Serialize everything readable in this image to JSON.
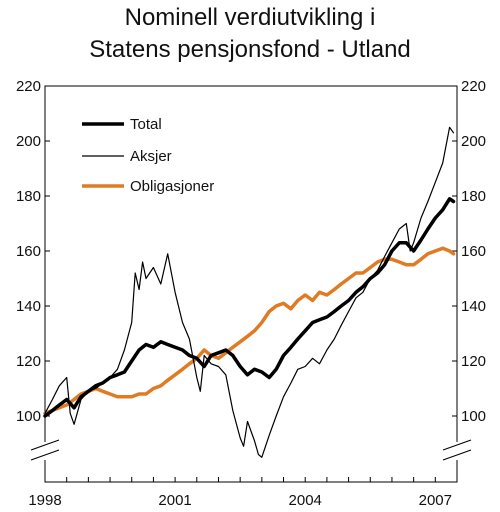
{
  "chart_data": {
    "type": "line",
    "title_line1": "Nominell verdiutvikling i",
    "title_line2": "Statens pensjonsfond - Utland",
    "xlabel": "",
    "ylabel": "",
    "xlim": [
      1998.0,
      2007.5
    ],
    "ylim": [
      82,
      220
    ],
    "y_ticks": [
      100,
      120,
      140,
      160,
      180,
      200,
      220
    ],
    "x_ticks": [
      1998,
      2001,
      2004,
      2007
    ],
    "x_minor_tick_interval": 0.5,
    "axis_break": true,
    "grid": false,
    "legend_position": "top-left inside",
    "series": [
      {
        "name": "Total",
        "color": "#000000",
        "width": 3.5,
        "points": [
          [
            1998.0,
            100
          ],
          [
            1998.17,
            102
          ],
          [
            1998.33,
            104
          ],
          [
            1998.5,
            106
          ],
          [
            1998.67,
            103
          ],
          [
            1998.83,
            107
          ],
          [
            1999.0,
            109
          ],
          [
            1999.17,
            111
          ],
          [
            1999.33,
            112
          ],
          [
            1999.5,
            114
          ],
          [
            1999.67,
            115
          ],
          [
            1999.83,
            116
          ],
          [
            2000.0,
            120
          ],
          [
            2000.17,
            124
          ],
          [
            2000.33,
            126
          ],
          [
            2000.5,
            125
          ],
          [
            2000.67,
            127
          ],
          [
            2000.83,
            126
          ],
          [
            2001.0,
            125
          ],
          [
            2001.17,
            124
          ],
          [
            2001.33,
            122
          ],
          [
            2001.5,
            121
          ],
          [
            2001.67,
            118
          ],
          [
            2001.83,
            122
          ],
          [
            2002.0,
            123
          ],
          [
            2002.17,
            124
          ],
          [
            2002.33,
            122
          ],
          [
            2002.5,
            118
          ],
          [
            2002.67,
            115
          ],
          [
            2002.83,
            117
          ],
          [
            2003.0,
            116
          ],
          [
            2003.17,
            114
          ],
          [
            2003.33,
            117
          ],
          [
            2003.5,
            122
          ],
          [
            2003.67,
            125
          ],
          [
            2003.83,
            128
          ],
          [
            2004.0,
            131
          ],
          [
            2004.17,
            134
          ],
          [
            2004.33,
            135
          ],
          [
            2004.5,
            136
          ],
          [
            2004.67,
            138
          ],
          [
            2004.83,
            140
          ],
          [
            2005.0,
            142
          ],
          [
            2005.17,
            145
          ],
          [
            2005.33,
            147
          ],
          [
            2005.5,
            150
          ],
          [
            2005.67,
            152
          ],
          [
            2005.83,
            155
          ],
          [
            2006.0,
            160
          ],
          [
            2006.17,
            163
          ],
          [
            2006.33,
            163
          ],
          [
            2006.5,
            160
          ],
          [
            2006.67,
            164
          ],
          [
            2006.83,
            168
          ],
          [
            2007.0,
            172
          ],
          [
            2007.17,
            175
          ],
          [
            2007.33,
            179
          ],
          [
            2007.42,
            178
          ]
        ]
      },
      {
        "name": "Aksjer",
        "color": "#000000",
        "width": 1.2,
        "points": [
          [
            1998.0,
            101
          ],
          [
            1998.17,
            106
          ],
          [
            1998.33,
            111
          ],
          [
            1998.5,
            114
          ],
          [
            1998.58,
            101
          ],
          [
            1998.67,
            97
          ],
          [
            1998.83,
            106
          ],
          [
            1999.0,
            109
          ],
          [
            1999.17,
            110
          ],
          [
            1999.33,
            112
          ],
          [
            1999.5,
            114
          ],
          [
            1999.67,
            117
          ],
          [
            1999.83,
            124
          ],
          [
            2000.0,
            134
          ],
          [
            2000.08,
            152
          ],
          [
            2000.17,
            146
          ],
          [
            2000.25,
            156
          ],
          [
            2000.33,
            150
          ],
          [
            2000.5,
            154
          ],
          [
            2000.67,
            148
          ],
          [
            2000.83,
            159
          ],
          [
            2001.0,
            145
          ],
          [
            2001.17,
            134
          ],
          [
            2001.33,
            128
          ],
          [
            2001.5,
            114
          ],
          [
            2001.58,
            109
          ],
          [
            2001.67,
            122
          ],
          [
            2001.83,
            119
          ],
          [
            2002.0,
            118
          ],
          [
            2002.17,
            115
          ],
          [
            2002.33,
            102
          ],
          [
            2002.5,
            92
          ],
          [
            2002.58,
            89
          ],
          [
            2002.67,
            98
          ],
          [
            2002.83,
            91
          ],
          [
            2002.92,
            86
          ],
          [
            2003.0,
            85
          ],
          [
            2003.17,
            93
          ],
          [
            2003.33,
            100
          ],
          [
            2003.5,
            107
          ],
          [
            2003.67,
            112
          ],
          [
            2003.83,
            117
          ],
          [
            2004.0,
            118
          ],
          [
            2004.17,
            121
          ],
          [
            2004.33,
            119
          ],
          [
            2004.5,
            124
          ],
          [
            2004.67,
            128
          ],
          [
            2004.83,
            133
          ],
          [
            2005.0,
            138
          ],
          [
            2005.17,
            143
          ],
          [
            2005.33,
            145
          ],
          [
            2005.5,
            150
          ],
          [
            2005.67,
            153
          ],
          [
            2005.83,
            158
          ],
          [
            2006.0,
            163
          ],
          [
            2006.17,
            168
          ],
          [
            2006.33,
            170
          ],
          [
            2006.42,
            160
          ],
          [
            2006.5,
            163
          ],
          [
            2006.67,
            172
          ],
          [
            2006.83,
            178
          ],
          [
            2007.0,
            185
          ],
          [
            2007.17,
            192
          ],
          [
            2007.33,
            205
          ],
          [
            2007.42,
            203
          ]
        ]
      },
      {
        "name": "Obligasjoner",
        "color": "#e07b23",
        "width": 3.5,
        "points": [
          [
            1998.0,
            101
          ],
          [
            1998.17,
            102
          ],
          [
            1998.33,
            103
          ],
          [
            1998.5,
            104
          ],
          [
            1998.67,
            106
          ],
          [
            1998.83,
            108
          ],
          [
            1999.0,
            109
          ],
          [
            1999.17,
            110
          ],
          [
            1999.33,
            109
          ],
          [
            1999.5,
            108
          ],
          [
            1999.67,
            107
          ],
          [
            1999.83,
            107
          ],
          [
            2000.0,
            107
          ],
          [
            2000.17,
            108
          ],
          [
            2000.33,
            108
          ],
          [
            2000.5,
            110
          ],
          [
            2000.67,
            111
          ],
          [
            2000.83,
            113
          ],
          [
            2001.0,
            115
          ],
          [
            2001.17,
            117
          ],
          [
            2001.33,
            119
          ],
          [
            2001.5,
            121
          ],
          [
            2001.67,
            124
          ],
          [
            2001.83,
            122
          ],
          [
            2002.0,
            121
          ],
          [
            2002.17,
            123
          ],
          [
            2002.33,
            125
          ],
          [
            2002.5,
            127
          ],
          [
            2002.67,
            129
          ],
          [
            2002.83,
            131
          ],
          [
            2003.0,
            134
          ],
          [
            2003.17,
            138
          ],
          [
            2003.33,
            140
          ],
          [
            2003.5,
            141
          ],
          [
            2003.67,
            139
          ],
          [
            2003.83,
            142
          ],
          [
            2004.0,
            144
          ],
          [
            2004.17,
            142
          ],
          [
            2004.33,
            145
          ],
          [
            2004.5,
            144
          ],
          [
            2004.67,
            146
          ],
          [
            2004.83,
            148
          ],
          [
            2005.0,
            150
          ],
          [
            2005.17,
            152
          ],
          [
            2005.33,
            152
          ],
          [
            2005.5,
            154
          ],
          [
            2005.67,
            156
          ],
          [
            2005.83,
            157
          ],
          [
            2006.0,
            157
          ],
          [
            2006.17,
            156
          ],
          [
            2006.33,
            155
          ],
          [
            2006.5,
            155
          ],
          [
            2006.67,
            157
          ],
          [
            2006.83,
            159
          ],
          [
            2007.0,
            160
          ],
          [
            2007.17,
            161
          ],
          [
            2007.33,
            160
          ],
          [
            2007.42,
            159
          ]
        ]
      }
    ]
  }
}
